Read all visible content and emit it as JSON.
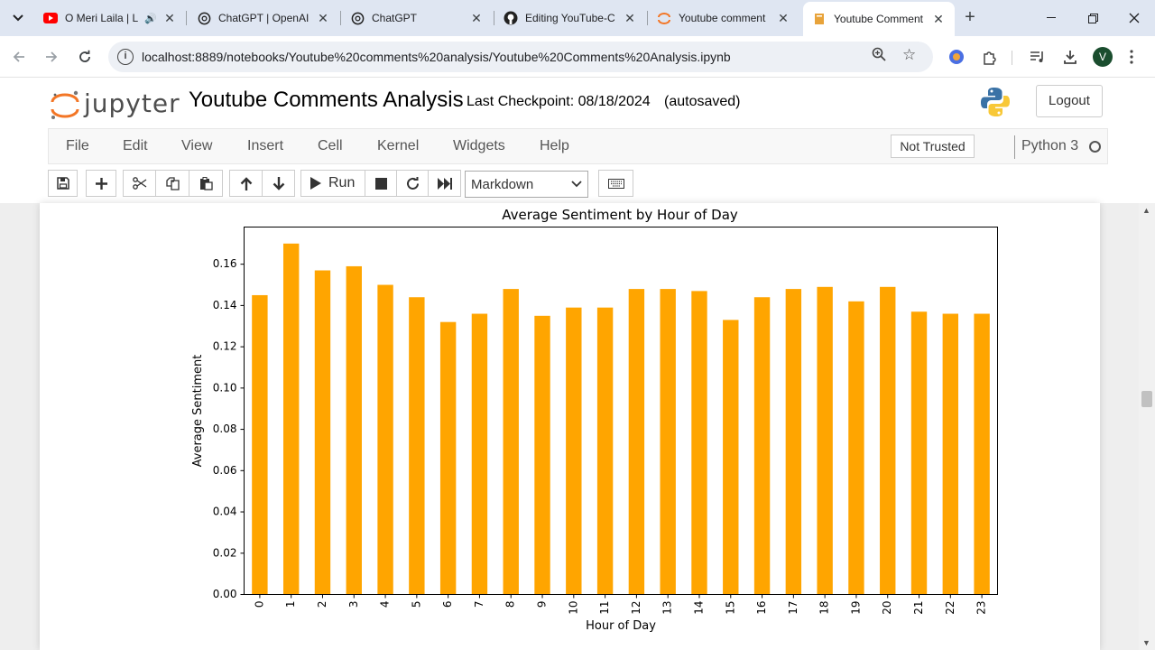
{
  "browser": {
    "tabs": [
      {
        "title": "O Meri Laila | L",
        "favicon": "youtube-icon",
        "audio": true
      },
      {
        "title": "ChatGPT | OpenAI",
        "favicon": "openai-icon"
      },
      {
        "title": "ChatGPT",
        "favicon": "openai-icon"
      },
      {
        "title": "Editing YouTube-C",
        "favicon": "github-icon"
      },
      {
        "title": "Youtube comment",
        "favicon": "jupyter-icon"
      },
      {
        "title": "Youtube Comment",
        "favicon": "notebook-icon",
        "active": true
      }
    ],
    "url": "localhost:8889/notebooks/Youtube%20comments%20analysis/Youtube%20Comments%20Analysis.ipynb",
    "profile_initial": "V"
  },
  "jupyter": {
    "logo_text": "jupyter",
    "notebook_title": "Youtube Comments Analysis",
    "checkpoint": "Last Checkpoint: 08/18/2024",
    "autosave": "(autosaved)",
    "logout": "Logout",
    "menu": [
      "File",
      "Edit",
      "View",
      "Insert",
      "Cell",
      "Kernel",
      "Widgets",
      "Help"
    ],
    "trust": "Not Trusted",
    "kernel": "Python 3",
    "toolbar": {
      "run_label": "Run",
      "cell_type": "Markdown"
    }
  },
  "colors": {
    "bar": "#ffa500",
    "accent_orange": "#f37626"
  },
  "chart_data": {
    "type": "bar",
    "title": "Average Sentiment by Hour of Day",
    "xlabel": "Hour of Day",
    "ylabel": "Average Sentiment",
    "categories": [
      "0",
      "1",
      "2",
      "3",
      "4",
      "5",
      "6",
      "7",
      "8",
      "9",
      "10",
      "11",
      "12",
      "13",
      "14",
      "15",
      "16",
      "17",
      "18",
      "19",
      "20",
      "21",
      "22",
      "23"
    ],
    "values": [
      0.145,
      0.17,
      0.157,
      0.159,
      0.15,
      0.144,
      0.132,
      0.136,
      0.148,
      0.135,
      0.139,
      0.139,
      0.148,
      0.148,
      0.147,
      0.133,
      0.144,
      0.148,
      0.149,
      0.142,
      0.149,
      0.137,
      0.136,
      0.136
    ],
    "yticks": [
      "0.00",
      "0.02",
      "0.04",
      "0.06",
      "0.08",
      "0.10",
      "0.12",
      "0.14",
      "0.16"
    ],
    "ylim": [
      0,
      0.178
    ],
    "grid": false,
    "legend": "none"
  }
}
